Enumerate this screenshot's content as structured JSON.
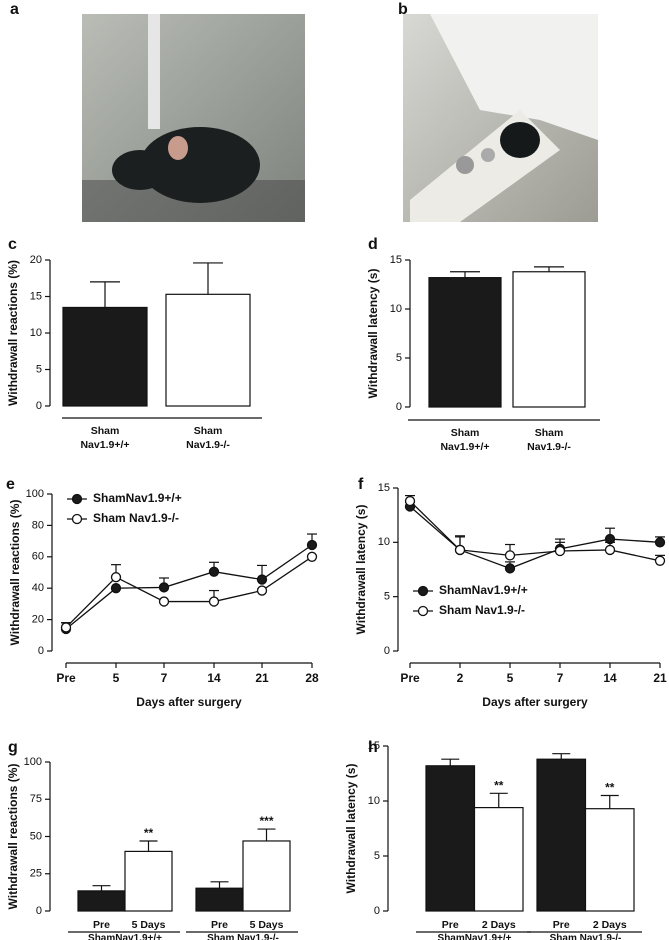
{
  "images": [
    {
      "label": "a"
    },
    {
      "label": "b"
    }
  ],
  "chart_data": [
    {
      "label": "c",
      "type": "bar",
      "ylabel": "Withdrawall reactions (%)",
      "categories": [
        [
          "Sham",
          "Nav1.9+/+"
        ],
        [
          "Sham",
          "Nav1.9-/-"
        ]
      ],
      "values": [
        13.5,
        15.3
      ],
      "errors": [
        3.5,
        4.3
      ],
      "colors": [
        "#1a1a1a",
        "#ffffff"
      ],
      "ylim": [
        0,
        20
      ],
      "yticks": [
        0,
        5,
        10,
        15,
        20
      ]
    },
    {
      "label": "d",
      "type": "bar",
      "ylabel": "Withdrawall latency (s)",
      "categories": [
        [
          "Sham",
          "Nav1.9+/+"
        ],
        [
          "Sham",
          "Nav1.9-/-"
        ]
      ],
      "values": [
        13.2,
        13.8
      ],
      "errors": [
        0.6,
        0.5
      ],
      "colors": [
        "#1a1a1a",
        "#ffffff"
      ],
      "ylim": [
        0,
        15
      ],
      "yticks": [
        0,
        5,
        10,
        15
      ]
    },
    {
      "label": "e",
      "type": "line",
      "ylabel": "Withdrawall reactions (%)",
      "xlabel": "Days after surgery",
      "categories": [
        "Pre",
        "5",
        "7",
        "14",
        "21",
        "28"
      ],
      "series": [
        {
          "name": "ShamNav1.9+/+",
          "color": "#1a1a1a",
          "values": [
            14,
            40,
            40.5,
            50.5,
            45.5,
            67.5
          ],
          "errors": [
            4,
            0,
            6,
            6,
            9,
            7
          ]
        },
        {
          "name": "Sham Nav1.9-/-",
          "color": "#ffffff",
          "values": [
            15,
            47,
            31.5,
            31.5,
            38.5,
            60
          ],
          "errors": [
            3,
            8,
            0,
            7,
            0,
            0
          ]
        }
      ],
      "ylim": [
        0,
        100
      ],
      "yticks": [
        0,
        20,
        40,
        60,
        80,
        100
      ],
      "legend": "upper left"
    },
    {
      "label": "f",
      "type": "line",
      "ylabel": "Withdrawall latency (s)",
      "xlabel": "Days after surgery",
      "categories": [
        "Pre",
        "2",
        "5",
        "7",
        "14",
        "21"
      ],
      "series": [
        {
          "name": "ShamNav1.9+/+",
          "color": "#1a1a1a",
          "values": [
            13.3,
            9.3,
            7.6,
            9.4,
            10.3,
            10.0
          ],
          "errors": [
            0.4,
            1.2,
            0.6,
            0.9,
            1.0,
            0.5
          ]
        },
        {
          "name": "Sham Nav1.9-/-",
          "color": "#ffffff",
          "values": [
            13.8,
            9.3,
            8.8,
            9.2,
            9.3,
            8.3
          ],
          "errors": [
            0.5,
            1.3,
            1.0,
            0.8,
            0.7,
            0.5
          ]
        }
      ],
      "ylim": [
        0,
        15
      ],
      "yticks": [
        0,
        5,
        10,
        15
      ],
      "legend": "lower left"
    },
    {
      "label": "g",
      "type": "grouped_bar",
      "ylabel": "Withdrawall reactions (%)",
      "categories": [
        "ShamNav1.9+/+",
        "Sham Nav1.9-/-"
      ],
      "series": [
        {
          "name": "Pre",
          "color": "#1a1a1a",
          "values": [
            13.5,
            15.3
          ],
          "errors": [
            3.5,
            4.3
          ]
        },
        {
          "name": "5 Days",
          "color": "#ffffff",
          "values": [
            40,
            47
          ],
          "errors": [
            7,
            8
          ],
          "annotations": [
            "**",
            "***"
          ]
        }
      ],
      "ylim": [
        0,
        100
      ],
      "yticks": [
        0,
        25,
        50,
        75,
        100
      ]
    },
    {
      "label": "h",
      "type": "grouped_bar",
      "ylabel": "Withdrawall latency (s)",
      "categories": [
        "ShamNav1.9+/+",
        "Sham Nav1.9-/-"
      ],
      "series": [
        {
          "name": "Pre",
          "color": "#1a1a1a",
          "values": [
            13.2,
            13.8
          ],
          "errors": [
            0.6,
            0.5
          ]
        },
        {
          "name": "2 Days",
          "color": "#ffffff",
          "values": [
            9.4,
            9.3
          ],
          "errors": [
            1.3,
            1.2
          ],
          "annotations": [
            "**",
            "**"
          ]
        }
      ],
      "ylim": [
        0,
        15
      ],
      "yticks": [
        0,
        5,
        10,
        15
      ]
    }
  ]
}
